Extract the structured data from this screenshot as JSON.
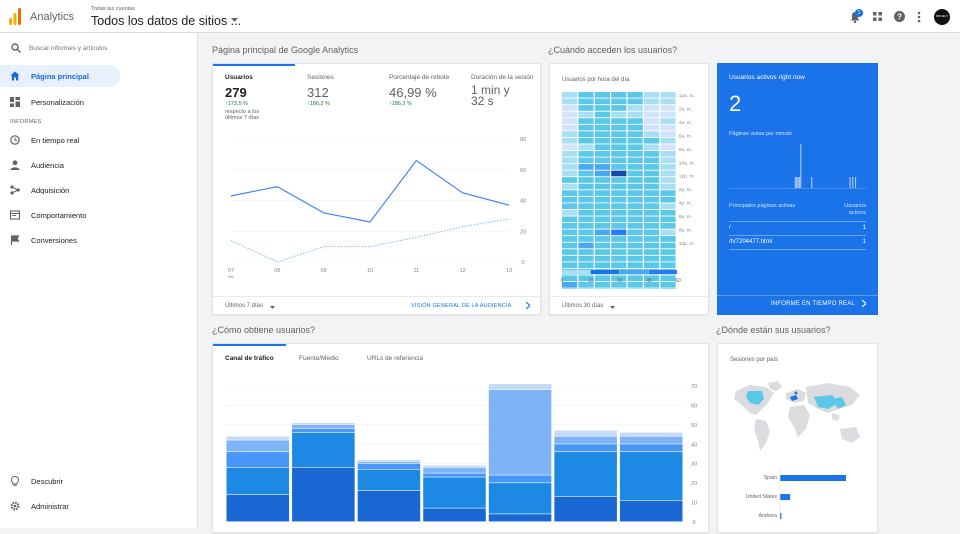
{
  "header": {
    "app_name": "Analytics",
    "account_label": "Todas las cuentas",
    "property_title": "Todos los datos de sitios ...",
    "notification_count": "1",
    "avatar_text": "PROJECT"
  },
  "sidebar": {
    "search_placeholder": "Buscar informes y artículos",
    "items": [
      {
        "label": "Página principal",
        "icon": "home-icon"
      },
      {
        "label": "Personalización",
        "icon": "dashboard-icon"
      }
    ],
    "reports_heading": "INFORMES",
    "report_items": [
      {
        "label": "En tiempo real",
        "icon": "clock-icon"
      },
      {
        "label": "Audiencia",
        "icon": "person-icon"
      },
      {
        "label": "Adquisición",
        "icon": "acquisition-icon"
      },
      {
        "label": "Comportamiento",
        "icon": "behavior-icon"
      },
      {
        "label": "Conversiones",
        "icon": "flag-icon"
      }
    ],
    "bottom_items": [
      {
        "label": "Descubrir",
        "icon": "lightbulb-icon"
      },
      {
        "label": "Administrar",
        "icon": "gear-icon"
      }
    ]
  },
  "sections": {
    "home_title": "Página principal de Google Analytics",
    "when_title": "¿Cuándo acceden los usuarios?",
    "how_title": "¿Cómo obtiene usuarios?",
    "where_title": "¿Dónde están sus usuarios?"
  },
  "overview": {
    "metrics": [
      {
        "label": "Usuarios",
        "value": "279",
        "change": "↑173,5 %",
        "note_lines": [
          "respecto a los",
          "últimos 7 días"
        ]
      },
      {
        "label": "Sesiones",
        "value": "312",
        "change": "↑186,2 %"
      },
      {
        "label": "Porcentaje de rebote",
        "value": "46,99 %",
        "change": "↑186,2 %"
      },
      {
        "label": "Duración de la sesión",
        "value_lines": [
          "1 min y",
          "32 s"
        ]
      }
    ],
    "footer_left": "Últimos 7 días",
    "footer_right": "VISIÓN GENERAL DE LA AUDIENCIA",
    "chart_data": {
      "type": "line",
      "x": [
        "07",
        "08",
        "09",
        "10",
        "11",
        "12",
        "13"
      ],
      "x_sublabel": "feb",
      "ylim": [
        0,
        80
      ],
      "yticks": [
        0,
        20,
        40,
        60,
        80
      ],
      "series": [
        {
          "style": "solid",
          "values": [
            43,
            49,
            32,
            26,
            66,
            45,
            37
          ]
        },
        {
          "style": "dotted",
          "values": [
            14,
            0,
            10,
            10,
            16,
            23,
            28
          ]
        }
      ]
    }
  },
  "heatmap": {
    "title": "Usuarios por hora del día",
    "footer_left": "Últimos 30 días",
    "chart_data": {
      "type": "heatmap",
      "days": [
        "dom.",
        "lun.",
        "mar.",
        "mié.",
        "jue.",
        "vie.",
        "sáb."
      ],
      "hours": [
        "12a. m.",
        "2a. m.",
        "4a. m.",
        "6a. m.",
        "8a. m.",
        "10a. m.",
        "12p. m.",
        "2p. m.",
        "4p. m.",
        "6p. m.",
        "8p. m.",
        "10p. m."
      ],
      "scale": [
        0,
        15,
        30,
        45,
        60
      ],
      "matrix": [
        [
          2,
          3,
          3,
          3,
          3,
          2,
          2
        ],
        [
          2,
          3,
          3,
          3,
          3,
          2,
          2
        ],
        [
          1,
          3,
          3,
          3,
          2,
          1,
          1
        ],
        [
          1,
          2,
          3,
          2,
          2,
          1,
          1
        ],
        [
          1,
          3,
          3,
          3,
          3,
          1,
          2
        ],
        [
          1,
          3,
          3,
          3,
          3,
          1,
          1
        ],
        [
          2,
          3,
          3,
          3,
          3,
          2,
          1
        ],
        [
          2,
          3,
          3,
          3,
          3,
          3,
          2
        ],
        [
          1,
          2,
          3,
          3,
          3,
          2,
          1
        ],
        [
          2,
          3,
          3,
          3,
          3,
          3,
          2
        ],
        [
          2,
          3,
          3,
          3,
          3,
          3,
          2
        ],
        [
          2,
          4,
          4,
          3,
          3,
          3,
          2
        ],
        [
          2,
          3,
          4,
          8,
          3,
          3,
          2
        ],
        [
          3,
          3,
          3,
          3,
          3,
          3,
          2
        ],
        [
          2,
          3,
          3,
          3,
          3,
          3,
          2
        ],
        [
          3,
          3,
          3,
          3,
          3,
          3,
          3
        ],
        [
          3,
          3,
          3,
          3,
          3,
          3,
          3
        ],
        [
          3,
          3,
          3,
          3,
          3,
          3,
          2
        ],
        [
          2,
          3,
          3,
          3,
          3,
          3,
          3
        ],
        [
          3,
          3,
          3,
          3,
          3,
          3,
          3
        ],
        [
          3,
          3,
          3,
          3,
          3,
          3,
          3
        ],
        [
          3,
          3,
          4,
          5,
          3,
          3,
          2
        ],
        [
          3,
          3,
          3,
          3,
          3,
          3,
          3
        ],
        [
          3,
          4,
          3,
          3,
          3,
          3,
          3
        ],
        [
          3,
          3,
          3,
          3,
          3,
          3,
          3
        ],
        [
          3,
          3,
          3,
          3,
          3,
          3,
          3
        ],
        [
          3,
          3,
          3,
          3,
          3,
          3,
          3
        ],
        [
          3,
          3,
          3,
          3,
          3,
          3,
          3
        ],
        [
          3,
          3,
          3,
          3,
          3,
          3,
          3
        ],
        [
          4,
          3,
          3,
          3,
          3,
          3,
          3
        ],
        [
          4,
          3,
          3,
          3,
          3,
          3,
          4
        ],
        [
          8,
          3,
          3,
          3,
          3,
          3,
          3
        ]
      ]
    }
  },
  "realtime": {
    "title": "Usuarios activos right now",
    "value": "2",
    "pageviews_label": "Páginas vistas por minuto",
    "top_pages_label": "Principales páginas activas",
    "users_label_lines": [
      "Usuarios",
      "activos"
    ],
    "pages": [
      {
        "path": "/",
        "users": "1"
      },
      {
        "path": "/h/7204477.html",
        "users": "1"
      }
    ],
    "footer": "INFORME EN TIEMPO REAL",
    "chart_data": {
      "type": "bar",
      "values": [
        0,
        0,
        0,
        0,
        0,
        0,
        0,
        0,
        0,
        0,
        0,
        0,
        0,
        0,
        0,
        0,
        0,
        0,
        0,
        0,
        0,
        0,
        0,
        0,
        0,
        0,
        0,
        0,
        0,
        0,
        0,
        0,
        0,
        0,
        0,
        0,
        0,
        0,
        0,
        0,
        0,
        0,
        0,
        0,
        0,
        0,
        0,
        0,
        1,
        1,
        1,
        1,
        4,
        0,
        0,
        0,
        0,
        0,
        0,
        0,
        1,
        0,
        0,
        0,
        0,
        0,
        0,
        0,
        0,
        0,
        0,
        0,
        0,
        0,
        0,
        0,
        0,
        0,
        0,
        0,
        0,
        0,
        0,
        0,
        0,
        0,
        0,
        0,
        1,
        0,
        1,
        0,
        1,
        0,
        0,
        0,
        0,
        0,
        0,
        0
      ]
    }
  },
  "acquisition": {
    "tabs": [
      "Canal de tráfico",
      "Fuente/Medio",
      "URLs de referencia"
    ],
    "chart_data": {
      "type": "bar",
      "stacked": true,
      "ylim": [
        0,
        70
      ],
      "yticks": [
        0,
        10,
        20,
        30,
        40,
        50,
        60,
        70
      ],
      "segments_per_bar": [
        [
          14,
          14,
          8,
          6,
          2
        ],
        [
          28,
          18,
          2,
          2,
          1
        ],
        [
          16,
          11,
          3,
          1,
          1
        ],
        [
          7,
          16,
          2,
          3,
          1
        ],
        [
          4,
          16,
          4,
          44,
          3
        ],
        [
          13,
          23,
          4,
          4,
          3
        ],
        [
          11,
          25,
          4,
          4,
          2
        ]
      ]
    }
  },
  "geo": {
    "title": "Sesiones por país",
    "chart_data": {
      "type": "bar",
      "orientation": "horizontal",
      "categories": [
        "Spain",
        "United States",
        "Andorra"
      ],
      "values": [
        91,
        14,
        2
      ]
    }
  },
  "colors": {
    "accent": "#1a73e8",
    "realtime_bg": "#1a73e8",
    "bar1": "#1967d2",
    "bar2": "#1e88e5",
    "bar3": "#4896f7",
    "bar4": "#7fb3f8",
    "bar5": "#c4daf8",
    "heat_light": "#5bc8e8"
  }
}
